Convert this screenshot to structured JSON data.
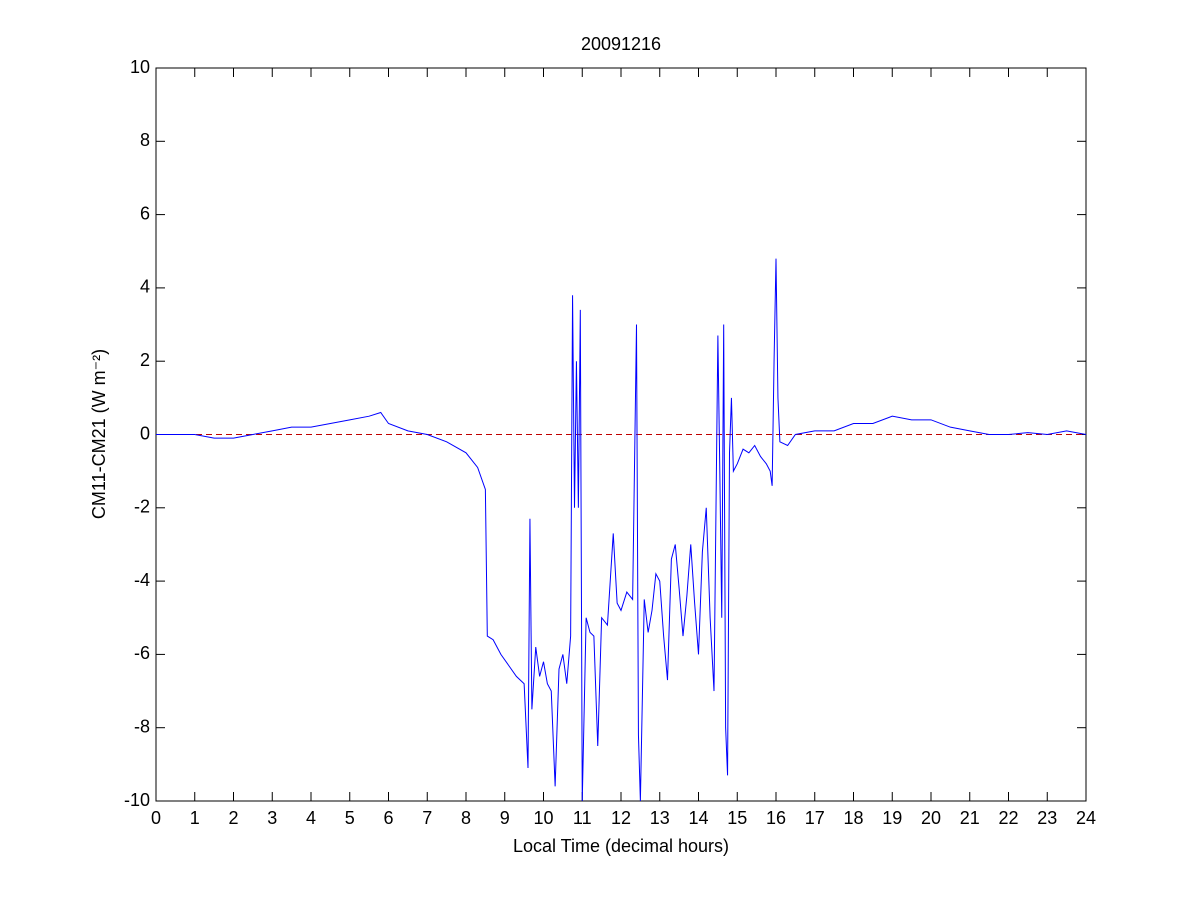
{
  "chart_data": {
    "type": "line",
    "title": "20091216",
    "xlabel": "Local Time (decimal hours)",
    "ylabel": "CM11-CM21 (W m⁻²)",
    "x": [
      0,
      0.5,
      1,
      1.5,
      2,
      2.5,
      3,
      3.5,
      4,
      4.5,
      5,
      5.5,
      5.8,
      6,
      6.5,
      7,
      7.5,
      8,
      8.3,
      8.5,
      8.55,
      8.7,
      8.9,
      9.1,
      9.3,
      9.5,
      9.6,
      9.65,
      9.7,
      9.8,
      9.9,
      10,
      10.1,
      10.2,
      10.3,
      10.4,
      10.5,
      10.6,
      10.7,
      10.75,
      10.8,
      10.85,
      10.9,
      10.95,
      11,
      11.1,
      11.2,
      11.3,
      11.4,
      11.5,
      11.65,
      11.8,
      11.9,
      12,
      12.15,
      12.3,
      12.4,
      12.45,
      12.5,
      12.6,
      12.7,
      12.8,
      12.9,
      13,
      13.1,
      13.2,
      13.3,
      13.4,
      13.5,
      13.6,
      13.7,
      13.8,
      13.9,
      14,
      14.1,
      14.2,
      14.3,
      14.4,
      14.5,
      14.55,
      14.6,
      14.65,
      14.7,
      14.75,
      14.8,
      14.85,
      14.9,
      15,
      15.15,
      15.3,
      15.45,
      15.6,
      15.75,
      15.85,
      15.9,
      15.95,
      16,
      16.05,
      16.1,
      16.3,
      16.5,
      17,
      17.5,
      18,
      18.5,
      19,
      19.5,
      20,
      20.5,
      21,
      21.5,
      22,
      22.5,
      23,
      23.5,
      24
    ],
    "series": [
      {
        "name": "CM11-CM21",
        "color": "#0000ff",
        "values": [
          0,
          0,
          0,
          -0.1,
          -0.1,
          0,
          0.1,
          0.2,
          0.2,
          0.3,
          0.4,
          0.5,
          0.6,
          0.3,
          0.1,
          0,
          -0.2,
          -0.5,
          -0.9,
          -1.5,
          -5.5,
          -5.6,
          -6,
          -6.3,
          -6.6,
          -6.8,
          -9.1,
          -2.3,
          -7.5,
          -5.8,
          -6.6,
          -6.2,
          -6.8,
          -7,
          -9.6,
          -6.4,
          -6,
          -6.8,
          -5.5,
          3.8,
          -2,
          2,
          -2,
          3.4,
          -10,
          -5,
          -5.4,
          -5.5,
          -8.5,
          -5,
          -5.2,
          -2.7,
          -4.6,
          -4.8,
          -4.3,
          -4.5,
          3,
          -8.2,
          -10,
          -4.5,
          -5.4,
          -4.8,
          -3.8,
          -4,
          -5.5,
          -6.7,
          -3.4,
          -3,
          -4.2,
          -5.5,
          -4.4,
          -3,
          -4.6,
          -6,
          -3.2,
          -2,
          -5,
          -7,
          2.7,
          -1,
          -5,
          3,
          -8,
          -9.3,
          -0.5,
          1,
          -1,
          -0.8,
          -0.4,
          -0.5,
          -0.3,
          -0.6,
          -0.8,
          -1,
          -1.4,
          2,
          4.8,
          1,
          -0.2,
          -0.3,
          0,
          0.1,
          0.1,
          0.3,
          0.3,
          0.5,
          0.4,
          0.4,
          0.2,
          0.1,
          0,
          0,
          0.05,
          0,
          0.1,
          0
        ]
      }
    ],
    "reference_line": {
      "value": 0,
      "color": "#c00000"
    },
    "xlim": [
      0,
      24
    ],
    "xticks": [
      0,
      1,
      2,
      3,
      4,
      5,
      6,
      7,
      8,
      9,
      10,
      11,
      12,
      13,
      14,
      15,
      16,
      17,
      18,
      19,
      20,
      21,
      22,
      23,
      24
    ],
    "ylim": [
      -10,
      10
    ],
    "yticks": [
      -10,
      -8,
      -6,
      -4,
      -2,
      0,
      2,
      4,
      6,
      8,
      10
    ]
  }
}
